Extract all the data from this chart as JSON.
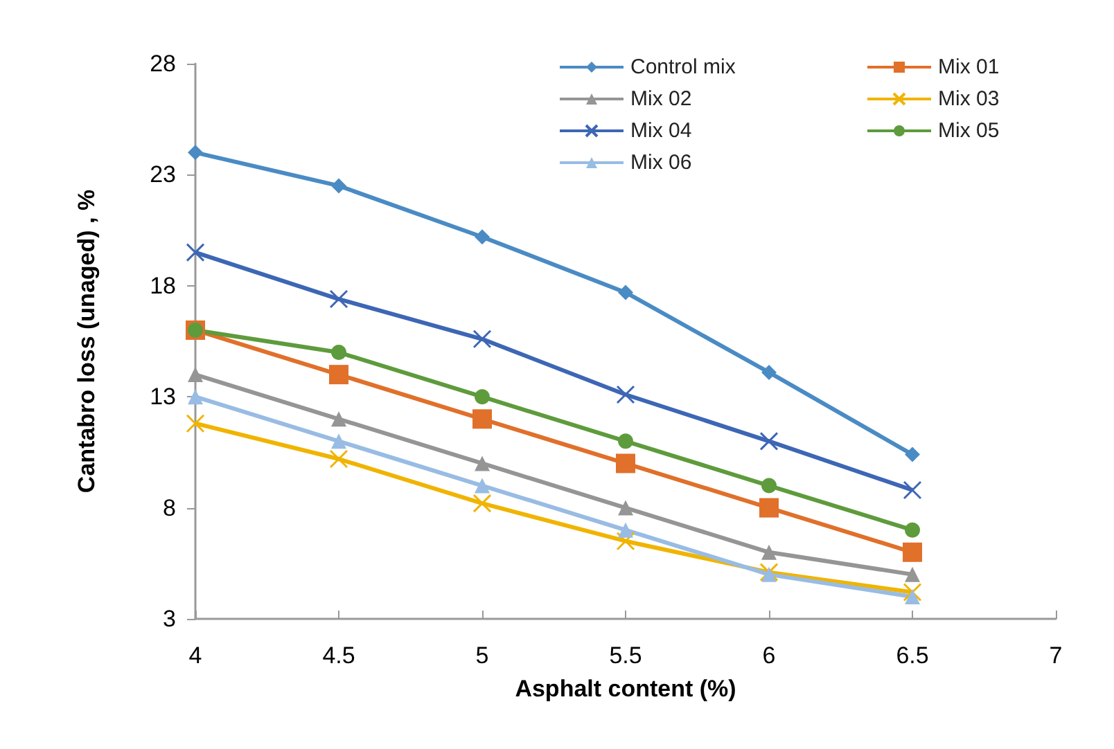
{
  "chart_data": {
    "type": "line",
    "xlabel": "Asphalt content (%)",
    "ylabel": "Cantabro loss (unaged) , %",
    "x": [
      4,
      4.5,
      5,
      5.5,
      6,
      6.5
    ],
    "xlim": [
      4,
      7
    ],
    "xticks": [
      4,
      4.5,
      5,
      5.5,
      6,
      6.5,
      7
    ],
    "ylim": [
      3,
      28
    ],
    "yticks": [
      3,
      8,
      13,
      18,
      23,
      28
    ],
    "grid": false,
    "legend": "top right",
    "line_style": "solid",
    "series": [
      {
        "name": "Control mix",
        "color": "#4a8bc4",
        "marker": "diamond",
        "values": [
          24.0,
          22.5,
          20.2,
          17.7,
          14.1,
          10.4
        ]
      },
      {
        "name": "Mix 01",
        "color": "#e0702a",
        "marker": "square",
        "values": [
          16,
          14,
          12,
          10,
          8,
          6
        ]
      },
      {
        "name": "Mix 02",
        "color": "#959595",
        "marker": "triangle",
        "values": [
          14,
          12,
          10,
          8,
          6,
          5
        ]
      },
      {
        "name": "Mix 03",
        "color": "#f0b400",
        "marker": "cross",
        "values": [
          11.8,
          10.2,
          8.2,
          6.5,
          5.1,
          4.2
        ]
      },
      {
        "name": "Mix 04",
        "color": "#3d66b5",
        "marker": "cross",
        "values": [
          19.5,
          17.4,
          15.6,
          13.1,
          11.0,
          8.8
        ]
      },
      {
        "name": "Mix 05",
        "color": "#5e9b3c",
        "marker": "circle",
        "values": [
          16,
          15,
          13,
          11,
          9,
          7
        ]
      },
      {
        "name": "Mix 06",
        "color": "#98bce3",
        "marker": "triangle",
        "values": [
          13,
          11,
          9,
          7,
          5,
          4
        ]
      }
    ]
  }
}
